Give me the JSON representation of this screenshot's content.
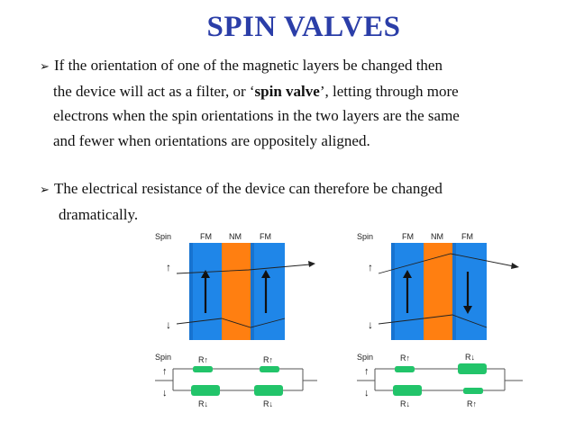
{
  "slide": {
    "title": "SPIN VALVES",
    "bullets": [
      {
        "marker": "➢",
        "lines": [
          "If the orientation of one of the magnetic layers  be changed then",
          "the device will act as a filter, or ‘",
          "electrons when the spin orientations in the two layers are the same",
          "and fewer when orientations are oppositely aligned."
        ],
        "emphasis": "spin valve",
        "line2_after": "’, letting through more"
      },
      {
        "marker": "➢",
        "lines": [
          "The electrical resistance of the device can therefore be changed",
          "dramatically."
        ]
      }
    ]
  },
  "diagrams": {
    "layer_labels": [
      "Spin",
      "FM",
      "NM",
      "FM"
    ],
    "spin_up": "↑",
    "spin_down": "↓",
    "circuit_spin_label": "Spin",
    "parallel": {
      "resistors_top": [
        "R↑",
        "R↑"
      ],
      "resistors_bottom": [
        "R↓",
        "R↓"
      ]
    },
    "antiparallel": {
      "resistors_top": [
        "R↑",
        "R↓"
      ],
      "resistors_bottom": [
        "R↓",
        "R↑"
      ]
    }
  },
  "colors": {
    "title": "#2b3ea8",
    "fm_blue": "#1f86e8",
    "nm_orange": "#ff7f11",
    "resistor_green": "#22c46a"
  }
}
